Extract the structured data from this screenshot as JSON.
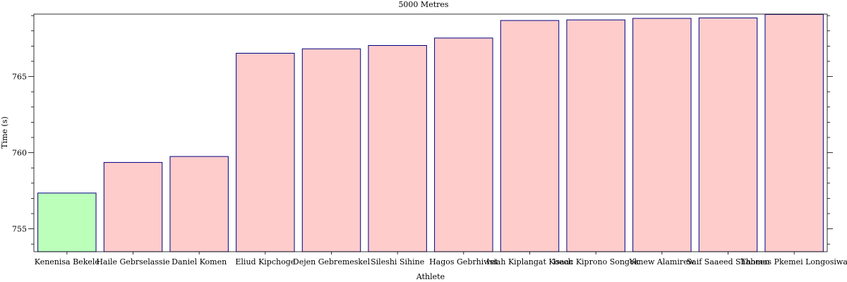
{
  "chart_data": {
    "type": "bar",
    "title": "5000 Metres",
    "xlabel": "Athlete",
    "ylabel": "Time (s)",
    "ylim": [
      753.5,
      769.1
    ],
    "yticks": [
      755,
      760,
      765
    ],
    "categories": [
      "Kenenisa Bekele",
      "Haile Gebrselassie",
      "Daniel Komen",
      "Eliud Kipchoge",
      "Dejen Gebremeskel",
      "Sileshi Sihine",
      "Hagos Gebrhiwet",
      "Isiah Kiplangat Koech",
      "Isaac Kiprono Songok",
      "Yenew Alamirew",
      "Saif Saaeed Shaheen",
      "Thomas Pkemei Longosiwa"
    ],
    "values": [
      757.35,
      759.36,
      759.75,
      766.53,
      766.82,
      767.04,
      767.53,
      768.68,
      768.72,
      768.82,
      768.85,
      769.08
    ],
    "highlight_index": 0,
    "colors": {
      "highlight_fill": "#bbffbb",
      "bar_fill": "#ffcccc",
      "bar_stroke": "#000080",
      "axis": "#000000"
    },
    "grid": false,
    "legend": "none"
  }
}
